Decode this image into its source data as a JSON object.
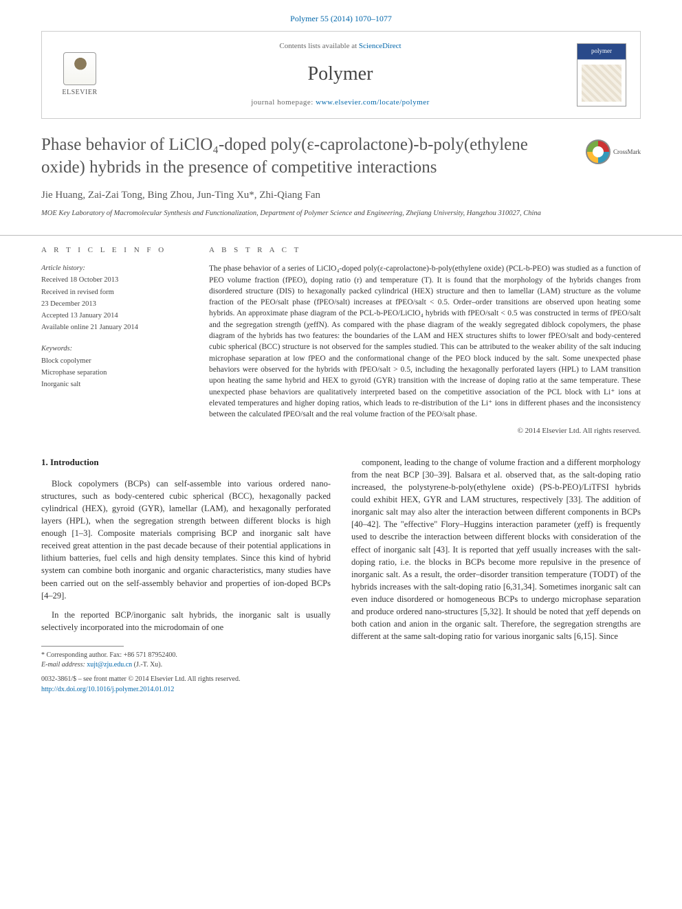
{
  "header": {
    "citation": "Polymer 55 (2014) 1070–1077",
    "contents_line_prefix": "Contents lists available at ",
    "sciencedirect": "ScienceDirect",
    "journal_name": "Polymer",
    "homepage_prefix": "journal homepage: ",
    "homepage_url": "www.elsevier.com/locate/polymer",
    "publisher_name": "ELSEVIER"
  },
  "crossmark": {
    "label": "CrossMark"
  },
  "article": {
    "title": "Phase behavior of LiClO₄-doped poly(ε-caprolactone)-b-poly(ethylene oxide) hybrids in the presence of competitive interactions",
    "authors": "Jie Huang, Zai-Zai Tong, Bing Zhou, Jun-Ting Xu*, Zhi-Qiang Fan",
    "affiliation": "MOE Key Laboratory of Macromolecular Synthesis and Functionalization, Department of Polymer Science and Engineering, Zhejiang University, Hangzhou 310027, China"
  },
  "article_info": {
    "heading": "A R T I C L E   I N F O",
    "history_title": "Article history:",
    "received": "Received 18 October 2013",
    "revised_1": "Received in revised form",
    "revised_2": "23 December 2013",
    "accepted": "Accepted 13 January 2014",
    "online": "Available online 21 January 2014",
    "keywords_title": "Keywords:",
    "kw1": "Block copolymer",
    "kw2": "Microphase separation",
    "kw3": "Inorganic salt"
  },
  "abstract": {
    "heading": "A B S T R A C T",
    "text": "The phase behavior of a series of LiClO₄-doped poly(ε-caprolactone)-b-poly(ethylene oxide) (PCL-b-PEO) was studied as a function of PEO volume fraction (fPEO), doping ratio (r) and temperature (T). It is found that the morphology of the hybrids changes from disordered structure (DIS) to hexagonally packed cylindrical (HEX) structure and then to lamellar (LAM) structure as the volume fraction of the PEO/salt phase (fPEO/salt) increases at fPEO/salt < 0.5. Order–order transitions are observed upon heating some hybrids. An approximate phase diagram of the PCL-b-PEO/LiClO₄ hybrids with fPEO/salt < 0.5 was constructed in terms of fPEO/salt and the segregation strength (χeffN). As compared with the phase diagram of the weakly segregated diblock copolymers, the phase diagram of the hybrids has two features: the boundaries of the LAM and HEX structures shifts to lower fPEO/salt and body-centered cubic spherical (BCC) structure is not observed for the samples studied. This can be attributed to the weaker ability of the salt inducing microphase separation at low fPEO and the conformational change of the PEO block induced by the salt. Some unexpected phase behaviors were observed for the hybrids with fPEO/salt > 0.5, including the hexagonally perforated layers (HPL) to LAM transition upon heating the same hybrid and HEX to gyroid (GYR) transition with the increase of doping ratio at the same temperature. These unexpected phase behaviors are qualitatively interpreted based on the competitive association of the PCL block with Li⁺ ions at elevated temperatures and higher doping ratios, which leads to re-distribution of the Li⁺ ions in different phases and the inconsistency between the calculated fPEO/salt and the real volume fraction of the PEO/salt phase.",
    "copyright": "© 2014 Elsevier Ltd. All rights reserved."
  },
  "body": {
    "section_heading": "1. Introduction",
    "col1_p1": "Block copolymers (BCPs) can self-assemble into various ordered nano-structures, such as body-centered cubic spherical (BCC), hexagonally packed cylindrical (HEX), gyroid (GYR), lamellar (LAM), and hexagonally perforated layers (HPL), when the segregation strength between different blocks is high enough [1–3]. Composite materials comprising BCP and inorganic salt have received great attention in the past decade because of their potential applications in lithium batteries, fuel cells and high density templates. Since this kind of hybrid system can combine both inorganic and organic characteristics, many studies have been carried out on the self-assembly behavior and properties of ion-doped BCPs [4–29].",
    "col1_p2": "In the reported BCP/inorganic salt hybrids, the inorganic salt is usually selectively incorporated into the microdomain of one",
    "col2_p1": "component, leading to the change of volume fraction and a different morphology from the neat BCP [30–39]. Balsara et al. observed that, as the salt-doping ratio increased, the polystyrene-b-poly(ethylene oxide) (PS-b-PEO)/LiTFSI hybrids could exhibit HEX, GYR and LAM structures, respectively [33]. The addition of inorganic salt may also alter the interaction between different components in BCPs [40–42]. The \"effective\" Flory–Huggins interaction parameter (χeff) is frequently used to describe the interaction between different blocks with consideration of the effect of inorganic salt [43]. It is reported that χeff usually increases with the salt-doping ratio, i.e. the blocks in BCPs become more repulsive in the presence of inorganic salt. As a result, the order–disorder transition temperature (TODT) of the hybrids increases with the salt-doping ratio [6,31,34]. Sometimes inorganic salt can even induce disordered or homogeneous BCPs to undergo microphase separation and produce ordered nano-structures [5,32]. It should be noted that χeff depends on both cation and anion in the organic salt. Therefore, the segregation strengths are different at the same salt-doping ratio for various inorganic salts [6,15]. Since"
  },
  "footnote": {
    "corresponding": "* Corresponding author. Fax: +86 571 87952400.",
    "email_label": "E-mail address: ",
    "email": "xujt@zju.edu.cn",
    "email_suffix": " (J.-T. Xu)."
  },
  "footer": {
    "issn_line": "0032-3861/$ – see front matter © 2014 Elsevier Ltd. All rights reserved.",
    "doi_url": "http://dx.doi.org/10.1016/j.polymer.2014.01.012"
  },
  "refs": {
    "r1": "[1–3]",
    "r2": "[4–29]",
    "r3": "[30–39]",
    "r4": "[33]",
    "r5": "[40–42]",
    "r6": "[43]",
    "r7": "[6,31,34]",
    "r8": "[5,32]",
    "r9": "[6,15]"
  }
}
